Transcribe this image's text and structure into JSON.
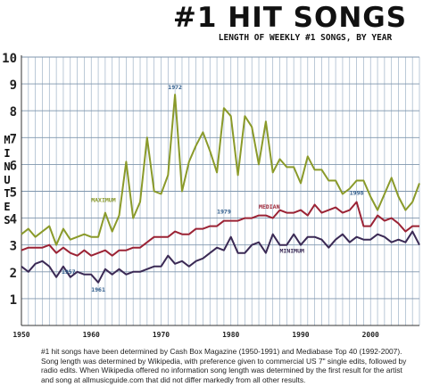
{
  "chart_data": {
    "type": "line",
    "title": "#1 HIT SONGS",
    "subtitle": "LENGTH OF WEEKLY #1 SONGS, BY YEAR",
    "xlabel": "",
    "ylabel": "MINUTES",
    "xlim": [
      1950,
      2007
    ],
    "ylim": [
      0,
      10
    ],
    "x_ticks": [
      1950,
      1960,
      1970,
      1980,
      1990,
      2000
    ],
    "y_ticks": [
      1,
      2,
      3,
      4,
      5,
      6,
      7,
      8,
      9,
      10
    ],
    "grid": "vertical lines each year, horizontal lines each minute",
    "x": [
      1950,
      1951,
      1952,
      1953,
      1954,
      1955,
      1956,
      1957,
      1958,
      1959,
      1960,
      1961,
      1962,
      1963,
      1964,
      1965,
      1966,
      1967,
      1968,
      1969,
      1970,
      1971,
      1972,
      1973,
      1974,
      1975,
      1976,
      1977,
      1978,
      1979,
      1980,
      1981,
      1982,
      1983,
      1984,
      1985,
      1986,
      1987,
      1988,
      1989,
      1990,
      1991,
      1992,
      1993,
      1994,
      1995,
      1996,
      1997,
      1998,
      1999,
      2000,
      2001,
      2002,
      2003,
      2004,
      2005,
      2006,
      2007
    ],
    "series": [
      {
        "name": "MAXIMUM",
        "color": "#8a9a2a",
        "values": [
          3.4,
          3.6,
          3.3,
          3.5,
          3.7,
          3.0,
          3.6,
          3.2,
          3.3,
          3.4,
          3.3,
          3.3,
          4.2,
          3.5,
          4.1,
          6.1,
          4.0,
          4.6,
          7.0,
          5.0,
          4.9,
          5.6,
          8.6,
          5.0,
          6.1,
          6.7,
          7.2,
          6.5,
          5.7,
          8.1,
          7.8,
          5.6,
          7.8,
          7.4,
          6.0,
          7.6,
          5.7,
          6.2,
          5.9,
          5.9,
          5.3,
          6.3,
          5.8,
          5.8,
          5.4,
          5.4,
          4.9,
          5.1,
          5.4,
          5.4,
          4.8,
          4.3,
          4.9,
          5.5,
          4.8,
          4.3,
          4.6,
          5.3
        ]
      },
      {
        "name": "MEDIAN",
        "color": "#9b2335",
        "values": [
          2.8,
          2.9,
          2.9,
          2.9,
          3.0,
          2.7,
          2.9,
          2.7,
          2.6,
          2.8,
          2.6,
          2.7,
          2.8,
          2.6,
          2.8,
          2.8,
          2.9,
          2.9,
          3.1,
          3.3,
          3.3,
          3.3,
          3.5,
          3.4,
          3.4,
          3.6,
          3.6,
          3.7,
          3.7,
          3.9,
          3.9,
          3.9,
          4.0,
          4.0,
          4.1,
          4.1,
          4.0,
          4.3,
          4.2,
          4.2,
          4.3,
          4.1,
          4.5,
          4.2,
          4.3,
          4.4,
          4.2,
          4.3,
          4.6,
          3.7,
          3.7,
          4.1,
          3.9,
          4.0,
          3.8,
          3.5,
          3.7,
          3.7
        ]
      },
      {
        "name": "MINIMUM",
        "color": "#3b2a55",
        "values": [
          2.2,
          2.0,
          2.3,
          2.4,
          2.2,
          1.8,
          2.2,
          1.8,
          2.0,
          1.9,
          1.9,
          1.6,
          2.1,
          1.9,
          2.1,
          1.9,
          2.0,
          2.0,
          2.1,
          2.2,
          2.2,
          2.6,
          2.3,
          2.4,
          2.2,
          2.4,
          2.5,
          2.7,
          2.9,
          2.8,
          3.3,
          2.7,
          2.7,
          3.0,
          3.1,
          2.7,
          3.4,
          3.0,
          3.0,
          3.4,
          3.0,
          3.3,
          3.3,
          3.2,
          2.9,
          3.2,
          3.4,
          3.1,
          3.3,
          3.2,
          3.2,
          3.4,
          3.3,
          3.1,
          3.2,
          3.1,
          3.5,
          3.0
        ]
      }
    ],
    "annotations": [
      {
        "text": "1972",
        "x": 1972,
        "y": 8.6
      },
      {
        "text": "1979",
        "x": 1979,
        "y": 3.9
      },
      {
        "text": "1998",
        "x": 1998,
        "y": 4.6
      },
      {
        "text": "1957",
        "x": 1957,
        "y": 1.8
      },
      {
        "text": "1961",
        "x": 1961,
        "y": 1.6
      }
    ],
    "series_labels": [
      "MAXIMUM",
      "MEDIAN",
      "MINIMUM"
    ],
    "caption": "#1 hit songs have been determined by Cash Box Magazine (1950-1991) and Mediabase Top 40 (1992-2007). Song length was determined by Wikipedia, with preference given to commercial US 7\" single edits, followed by radio edits. When Wikipedia offered no information song length was determined by the first result for the artist and song at allmusicguide.com that did not differ markedly from all other results."
  }
}
